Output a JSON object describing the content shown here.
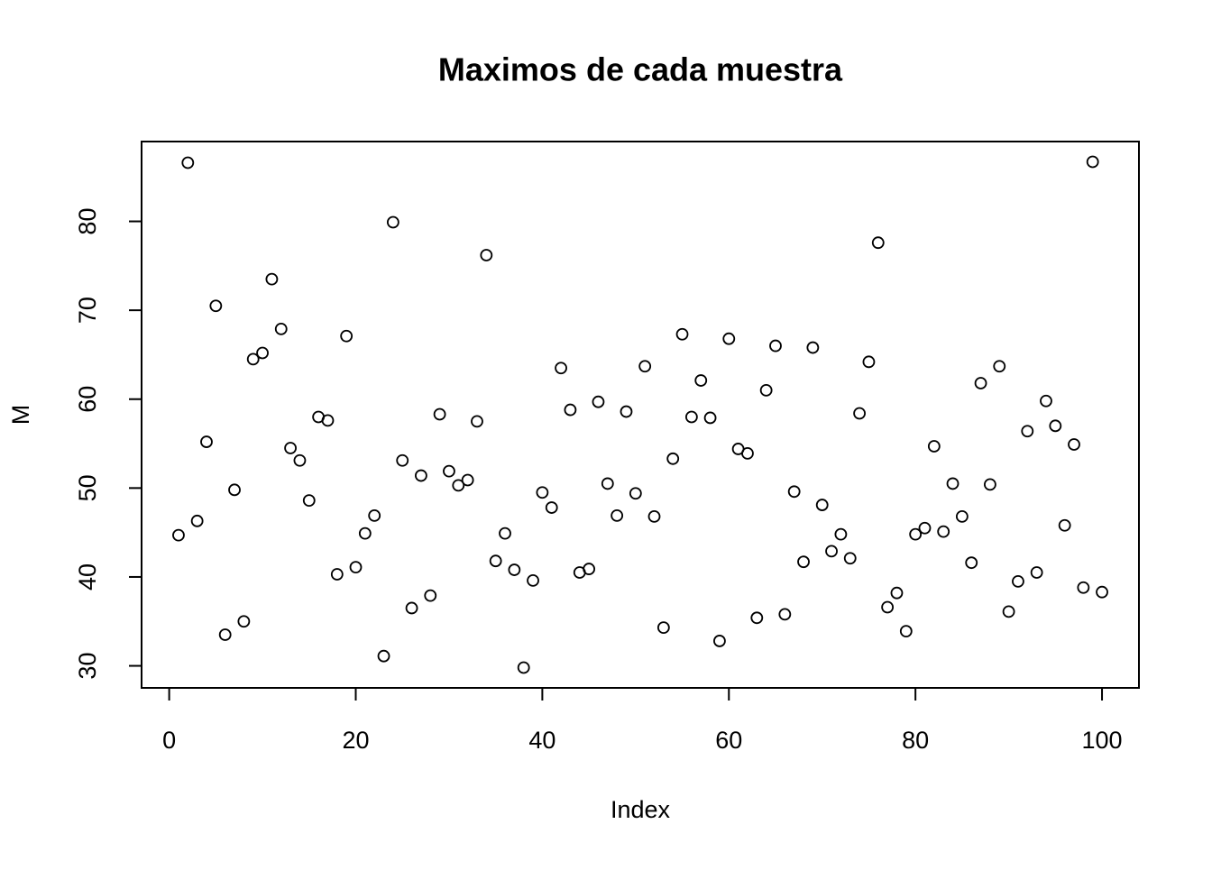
{
  "chart_data": {
    "type": "scatter",
    "title": "Maximos de cada muestra",
    "x_label": "Index",
    "y_label": "M",
    "x": [
      1,
      2,
      3,
      4,
      5,
      6,
      7,
      8,
      9,
      10,
      11,
      12,
      13,
      14,
      15,
      16,
      17,
      18,
      19,
      20,
      21,
      22,
      23,
      24,
      25,
      26,
      27,
      28,
      29,
      30,
      31,
      32,
      33,
      34,
      35,
      36,
      37,
      38,
      39,
      40,
      41,
      42,
      43,
      44,
      45,
      46,
      47,
      48,
      49,
      50,
      51,
      52,
      53,
      54,
      55,
      56,
      57,
      58,
      59,
      60,
      61,
      62,
      63,
      64,
      65,
      66,
      67,
      68,
      69,
      70,
      71,
      72,
      73,
      74,
      75,
      76,
      77,
      78,
      79,
      80,
      81,
      82,
      83,
      84,
      85,
      86,
      87,
      88,
      89,
      90,
      91,
      92,
      93,
      94,
      95,
      96,
      97,
      98,
      99,
      100
    ],
    "values": [
      44.7,
      86.6,
      46.3,
      55.2,
      70.5,
      33.5,
      49.8,
      35.0,
      64.5,
      65.2,
      73.5,
      67.9,
      54.5,
      53.1,
      48.6,
      58.0,
      57.6,
      40.3,
      67.1,
      41.1,
      44.9,
      46.9,
      31.1,
      79.9,
      53.1,
      36.5,
      51.4,
      37.9,
      58.3,
      51.9,
      50.3,
      50.9,
      57.5,
      76.2,
      41.8,
      44.9,
      40.8,
      29.8,
      39.6,
      49.5,
      47.8,
      63.5,
      58.8,
      40.5,
      40.9,
      59.7,
      50.5,
      46.9,
      58.6,
      49.4,
      63.7,
      46.8,
      34.3,
      53.3,
      67.3,
      58.0,
      62.1,
      57.9,
      32.8,
      66.8,
      54.4,
      53.9,
      35.4,
      61.0,
      66.0,
      35.8,
      49.6,
      41.7,
      65.8,
      48.1,
      42.9,
      44.8,
      42.1,
      58.4,
      64.2,
      77.6,
      36.6,
      38.2,
      33.9,
      44.8,
      45.5,
      54.7,
      45.1,
      50.5,
      46.8,
      41.6,
      61.8,
      50.4,
      63.7,
      36.1,
      39.5,
      56.4,
      40.5,
      59.8,
      57.0,
      45.8,
      54.9,
      38.8,
      86.7,
      38.3
    ],
    "color": "#000000",
    "xlim": [
      -2.96,
      103.96
    ],
    "xticks": [
      0,
      20,
      40,
      60,
      80,
      100
    ],
    "ylim": [
      27.52,
      88.98
    ],
    "yticks": [
      30,
      40,
      50,
      60,
      70,
      80
    ]
  }
}
